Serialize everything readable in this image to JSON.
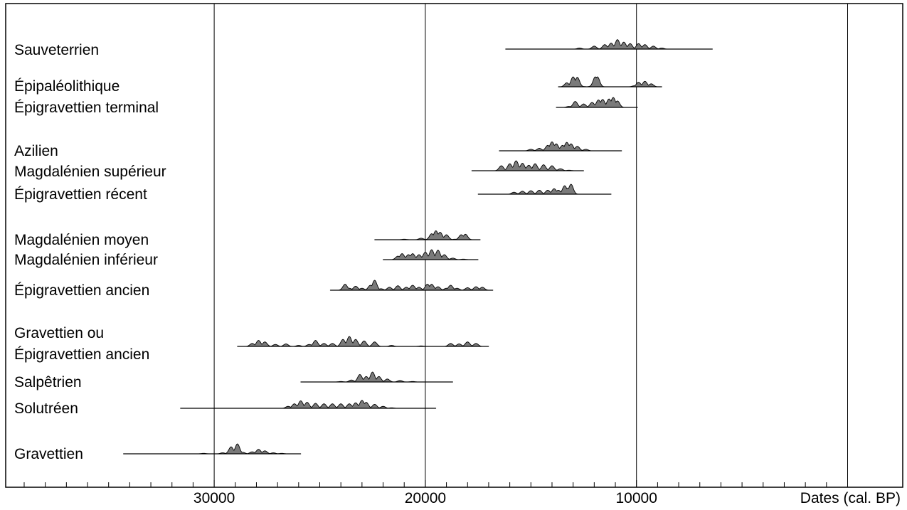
{
  "chart_data": {
    "type": "area",
    "title": "",
    "xlabel": "Dates (cal. BP)",
    "ylabel": "",
    "x_reversed": true,
    "x_range": [
      39000,
      500
    ],
    "major_ticks": [
      30000,
      20000,
      10000
    ],
    "major_tick_labels": [
      "30000",
      "20000",
      "10000"
    ],
    "minor_tick_step": 1000,
    "gridlines_x": [
      30000,
      20000,
      10000,
      0
    ],
    "grid": true,
    "legend": "none",
    "colors": {
      "fill": "#7a7a7a",
      "line": "#000000"
    },
    "cultures": [
      {
        "label": "Sauveterrien",
        "lines": [
          "Sauveterrien"
        ],
        "range": [
          16200,
          6400
        ],
        "peaks": [
          [
            12700,
            0.1
          ],
          [
            12000,
            0.3
          ],
          [
            11500,
            0.45
          ],
          [
            11200,
            0.6
          ],
          [
            10900,
            0.95
          ],
          [
            10600,
            0.7
          ],
          [
            10300,
            0.55
          ],
          [
            9900,
            0.55
          ],
          [
            9600,
            0.45
          ],
          [
            9200,
            0.3
          ],
          [
            8800,
            0.1
          ]
        ]
      },
      {
        "label": "Épipaléolithique",
        "lines": [
          "Épipaléolithique"
        ],
        "range": [
          13700,
          8800
        ],
        "peaks": [
          [
            13300,
            0.4
          ],
          [
            13000,
            1.0
          ],
          [
            12800,
            0.95
          ],
          [
            12600,
            0.05
          ],
          [
            12100,
            0.1
          ],
          [
            11950,
            1.0
          ],
          [
            11850,
            1.0
          ],
          [
            11750,
            0.05
          ],
          [
            10100,
            0.1
          ],
          [
            9900,
            0.45
          ],
          [
            9600,
            0.55
          ],
          [
            9300,
            0.3
          ]
        ]
      },
      {
        "label": "Épigravettien terminal",
        "lines": [
          "Épigravettien terminal"
        ],
        "range": [
          13800,
          9950
        ],
        "peaks": [
          [
            13200,
            0.1
          ],
          [
            12900,
            0.6
          ],
          [
            12500,
            0.35
          ],
          [
            12100,
            0.5
          ],
          [
            11800,
            0.75
          ],
          [
            11600,
            0.8
          ],
          [
            11300,
            0.85
          ],
          [
            11100,
            1.0
          ],
          [
            10900,
            0.65
          ]
        ]
      },
      {
        "label": "Azilien",
        "lines": [
          "Azilien"
        ],
        "range": [
          16500,
          10700
        ],
        "peaks": [
          [
            15000,
            0.15
          ],
          [
            14600,
            0.25
          ],
          [
            14200,
            0.55
          ],
          [
            14000,
            0.9
          ],
          [
            13800,
            0.7
          ],
          [
            13500,
            0.55
          ],
          [
            13300,
            0.85
          ],
          [
            13100,
            0.7
          ],
          [
            12800,
            0.45
          ],
          [
            12400,
            0.15
          ]
        ]
      },
      {
        "label": "Magdalénien supérieur",
        "lines": [
          "Magdalénien supérieur"
        ],
        "range": [
          17800,
          12500
        ],
        "peaks": [
          [
            16400,
            0.5
          ],
          [
            16000,
            0.7
          ],
          [
            15700,
            1.0
          ],
          [
            15400,
            0.75
          ],
          [
            15100,
            0.55
          ],
          [
            14800,
            0.7
          ],
          [
            14400,
            0.6
          ],
          [
            14000,
            0.5
          ],
          [
            13600,
            0.2
          ],
          [
            13200,
            0.05
          ]
        ]
      },
      {
        "label": "Épigravettien récent",
        "lines": [
          "Épigravettien récent"
        ],
        "range": [
          17500,
          11200
        ],
        "peaks": [
          [
            15800,
            0.2
          ],
          [
            15400,
            0.3
          ],
          [
            15000,
            0.35
          ],
          [
            14600,
            0.4
          ],
          [
            14200,
            0.4
          ],
          [
            13900,
            0.55
          ],
          [
            13700,
            0.4
          ],
          [
            13400,
            0.85
          ],
          [
            13250,
            0.6
          ],
          [
            13100,
            1.0
          ],
          [
            12950,
            0.0
          ]
        ]
      },
      {
        "label": "Magdalénien moyen",
        "lines": [
          "Magdalénien moyen"
        ],
        "range": [
          22400,
          17400
        ],
        "peaks": [
          [
            21000,
            0.05
          ],
          [
            20200,
            0.15
          ],
          [
            19700,
            0.6
          ],
          [
            19500,
            0.9
          ],
          [
            19300,
            0.75
          ],
          [
            19000,
            0.5
          ],
          [
            18600,
            0.05
          ],
          [
            18300,
            0.5
          ],
          [
            18100,
            0.55
          ],
          [
            17900,
            0.0
          ]
        ]
      },
      {
        "label": "Magdalénien inférieur",
        "lines": [
          "Magdalénien inférieur"
        ],
        "range": [
          22000,
          17500
        ],
        "peaks": [
          [
            21300,
            0.35
          ],
          [
            21100,
            0.6
          ],
          [
            20800,
            0.5
          ],
          [
            20600,
            0.6
          ],
          [
            20300,
            0.5
          ],
          [
            20000,
            0.75
          ],
          [
            19700,
            1.0
          ],
          [
            19400,
            0.95
          ],
          [
            19100,
            0.5
          ],
          [
            18700,
            0.15
          ],
          [
            18200,
            0.05
          ]
        ]
      },
      {
        "label": "Épigravettien ancien",
        "lines": [
          "Épigravettien ancien"
        ],
        "range": [
          24500,
          16800
        ],
        "peaks": [
          [
            23800,
            0.6
          ],
          [
            23600,
            0.2
          ],
          [
            23300,
            0.4
          ],
          [
            23000,
            0.2
          ],
          [
            22600,
            0.5
          ],
          [
            22400,
            1.0
          ],
          [
            22100,
            0.15
          ],
          [
            21700,
            0.3
          ],
          [
            21300,
            0.45
          ],
          [
            20900,
            0.3
          ],
          [
            20600,
            0.5
          ],
          [
            20300,
            0.3
          ],
          [
            19900,
            0.6
          ],
          [
            19700,
            0.6
          ],
          [
            19400,
            0.35
          ],
          [
            19000,
            0.2
          ],
          [
            18800,
            0.5
          ],
          [
            18500,
            0.2
          ],
          [
            18000,
            0.25
          ],
          [
            17600,
            0.35
          ],
          [
            17300,
            0.3
          ]
        ]
      },
      {
        "label": "Gravettien ou Épigravettien ancien",
        "lines": [
          "Gravettien ou",
          "Épigravettien ancien"
        ],
        "range": [
          28900,
          17000
        ],
        "peaks": [
          [
            28200,
            0.3
          ],
          [
            27900,
            0.6
          ],
          [
            27600,
            0.45
          ],
          [
            27100,
            0.2
          ],
          [
            26600,
            0.25
          ],
          [
            26000,
            0.1
          ],
          [
            25500,
            0.2
          ],
          [
            25200,
            0.6
          ],
          [
            24800,
            0.3
          ],
          [
            24400,
            0.3
          ],
          [
            23900,
            0.7
          ],
          [
            23600,
            1.0
          ],
          [
            23300,
            0.7
          ],
          [
            22900,
            0.55
          ],
          [
            22400,
            0.45
          ],
          [
            21600,
            0.1
          ],
          [
            20200,
            0.05
          ],
          [
            18800,
            0.3
          ],
          [
            18400,
            0.25
          ],
          [
            18000,
            0.45
          ],
          [
            17600,
            0.3
          ]
        ]
      },
      {
        "label": "Salpêtrien",
        "lines": [
          "Salpêtrien"
        ],
        "range": [
          25900,
          18700
        ],
        "peaks": [
          [
            24000,
            0.05
          ],
          [
            23500,
            0.2
          ],
          [
            23100,
            0.75
          ],
          [
            22800,
            0.55
          ],
          [
            22500,
            1.0
          ],
          [
            22200,
            0.55
          ],
          [
            21800,
            0.3
          ],
          [
            21200,
            0.15
          ],
          [
            20600,
            0.05
          ],
          [
            20000,
            0.0
          ]
        ]
      },
      {
        "label": "Solutréen",
        "lines": [
          "Solutréen"
        ],
        "range": [
          31600,
          19500
        ],
        "peaks": [
          [
            26500,
            0.2
          ],
          [
            26200,
            0.45
          ],
          [
            25900,
            0.75
          ],
          [
            25600,
            0.6
          ],
          [
            25200,
            0.5
          ],
          [
            24800,
            0.45
          ],
          [
            24400,
            0.45
          ],
          [
            24000,
            0.45
          ],
          [
            23600,
            0.45
          ],
          [
            23300,
            0.55
          ],
          [
            23000,
            0.8
          ],
          [
            22800,
            0.6
          ],
          [
            22400,
            0.4
          ],
          [
            22000,
            0.2
          ],
          [
            21600,
            0.05
          ]
        ]
      },
      {
        "label": "Gravettien",
        "lines": [
          "Gravettien"
        ],
        "range": [
          34300,
          25900
        ],
        "peaks": [
          [
            30500,
            0.05
          ],
          [
            29600,
            0.1
          ],
          [
            29200,
            0.7
          ],
          [
            28900,
            1.0
          ],
          [
            28650,
            0.15
          ],
          [
            28200,
            0.2
          ],
          [
            27900,
            0.45
          ],
          [
            27600,
            0.3
          ],
          [
            27200,
            0.1
          ],
          [
            26800,
            0.05
          ]
        ]
      }
    ]
  }
}
